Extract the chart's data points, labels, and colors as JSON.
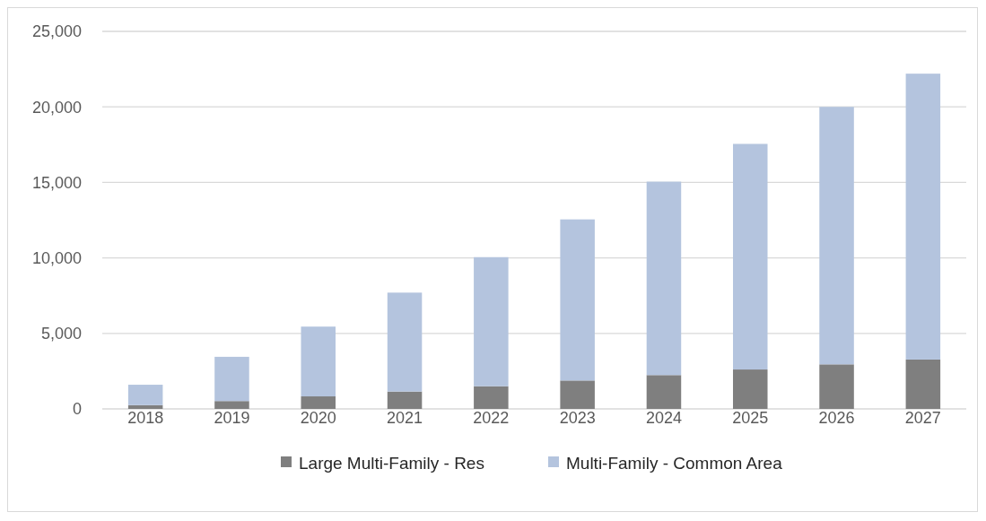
{
  "chart_data": {
    "type": "bar",
    "stacked": true,
    "categories": [
      "2018",
      "2019",
      "2020",
      "2021",
      "2022",
      "2023",
      "2024",
      "2025",
      "2026",
      "2027"
    ],
    "series": [
      {
        "name": "Large Multi-Family - Res",
        "color": "#7f7f7f",
        "values": [
          250,
          520,
          830,
          1150,
          1500,
          1880,
          2240,
          2610,
          2950,
          3270
        ]
      },
      {
        "name": "Multi-Family - Common Area",
        "color": "#b4c4de",
        "values": [
          1350,
          2930,
          4620,
          6550,
          8550,
          10670,
          12810,
          14940,
          17050,
          18930
        ]
      }
    ],
    "ylim": [
      0,
      25000
    ],
    "yticks": [
      {
        "value": 0,
        "label": "0"
      },
      {
        "value": 5000,
        "label": "5,000"
      },
      {
        "value": 10000,
        "label": "10,000"
      },
      {
        "value": 15000,
        "label": "15,000"
      },
      {
        "value": 20000,
        "label": "20,000"
      },
      {
        "value": 25000,
        "label": "25,000"
      }
    ],
    "grid": "y",
    "legend": "bottom"
  }
}
